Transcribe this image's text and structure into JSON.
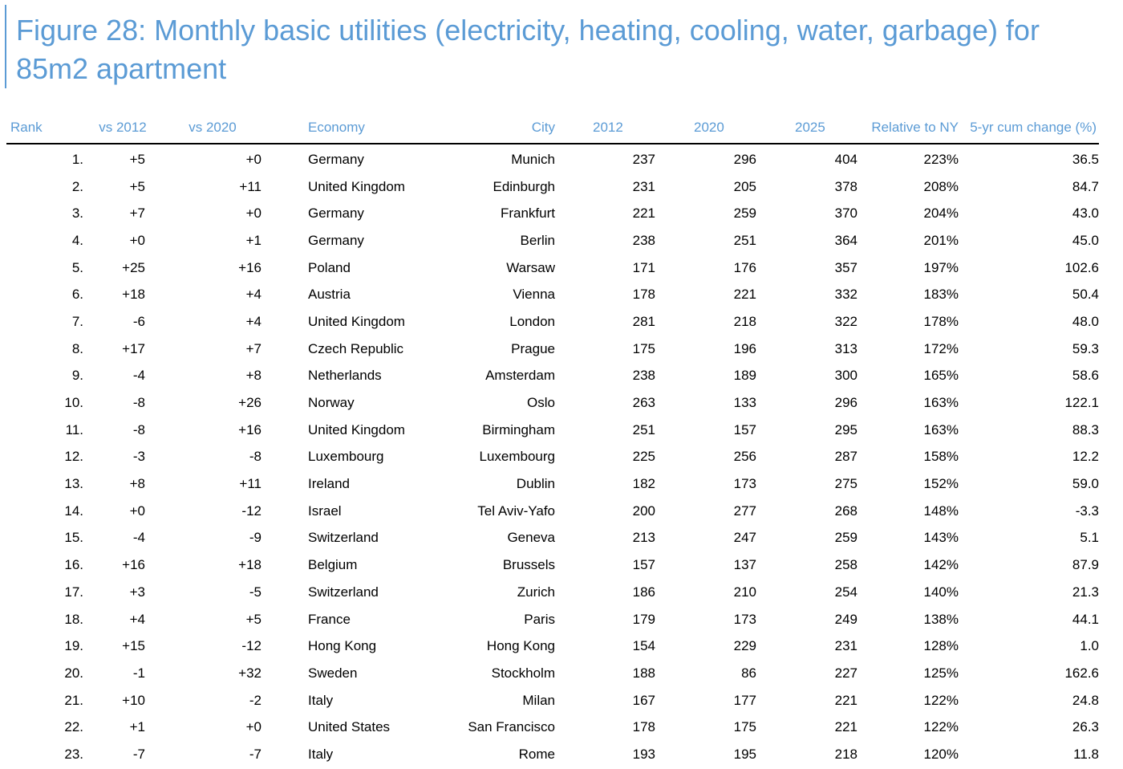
{
  "title": "Figure 28: Monthly basic utilities (electricity, heating, cooling, water, garbage) for 85m2 apartment",
  "colors": {
    "accent": "#5b9bd5",
    "text": "#000000",
    "rule": "#000000"
  },
  "table": {
    "headers": [
      "Rank",
      "vs 2012",
      "vs 2020",
      "Economy",
      "City",
      "2012",
      "2020",
      "2025",
      "Relative to NY",
      "5-yr cum change (%)"
    ],
    "rows": [
      [
        "1.",
        "+5",
        "+0",
        "Germany",
        "Munich",
        "237",
        "296",
        "404",
        "223%",
        "36.5"
      ],
      [
        "2.",
        "+5",
        "+11",
        "United Kingdom",
        "Edinburgh",
        "231",
        "205",
        "378",
        "208%",
        "84.7"
      ],
      [
        "3.",
        "+7",
        "+0",
        "Germany",
        "Frankfurt",
        "221",
        "259",
        "370",
        "204%",
        "43.0"
      ],
      [
        "4.",
        "+0",
        "+1",
        "Germany",
        "Berlin",
        "238",
        "251",
        "364",
        "201%",
        "45.0"
      ],
      [
        "5.",
        "+25",
        "+16",
        "Poland",
        "Warsaw",
        "171",
        "176",
        "357",
        "197%",
        "102.6"
      ],
      [
        "6.",
        "+18",
        "+4",
        "Austria",
        "Vienna",
        "178",
        "221",
        "332",
        "183%",
        "50.4"
      ],
      [
        "7.",
        "-6",
        "+4",
        "United Kingdom",
        "London",
        "281",
        "218",
        "322",
        "178%",
        "48.0"
      ],
      [
        "8.",
        "+17",
        "+7",
        "Czech Republic",
        "Prague",
        "175",
        "196",
        "313",
        "172%",
        "59.3"
      ],
      [
        "9.",
        "-4",
        "+8",
        "Netherlands",
        "Amsterdam",
        "238",
        "189",
        "300",
        "165%",
        "58.6"
      ],
      [
        "10.",
        "-8",
        "+26",
        "Norway",
        "Oslo",
        "263",
        "133",
        "296",
        "163%",
        "122.1"
      ],
      [
        "11.",
        "-8",
        "+16",
        "United Kingdom",
        "Birmingham",
        "251",
        "157",
        "295",
        "163%",
        "88.3"
      ],
      [
        "12.",
        "-3",
        "-8",
        "Luxembourg",
        "Luxembourg",
        "225",
        "256",
        "287",
        "158%",
        "12.2"
      ],
      [
        "13.",
        "+8",
        "+11",
        "Ireland",
        "Dublin",
        "182",
        "173",
        "275",
        "152%",
        "59.0"
      ],
      [
        "14.",
        "+0",
        "-12",
        "Israel",
        "Tel Aviv-Yafo",
        "200",
        "277",
        "268",
        "148%",
        "-3.3"
      ],
      [
        "15.",
        "-4",
        "-9",
        "Switzerland",
        "Geneva",
        "213",
        "247",
        "259",
        "143%",
        "5.1"
      ],
      [
        "16.",
        "+16",
        "+18",
        "Belgium",
        "Brussels",
        "157",
        "137",
        "258",
        "142%",
        "87.9"
      ],
      [
        "17.",
        "+3",
        "-5",
        "Switzerland",
        "Zurich",
        "186",
        "210",
        "254",
        "140%",
        "21.3"
      ],
      [
        "18.",
        "+4",
        "+5",
        "France",
        "Paris",
        "179",
        "173",
        "249",
        "138%",
        "44.1"
      ],
      [
        "19.",
        "+15",
        "-12",
        "Hong Kong",
        "Hong Kong",
        "154",
        "229",
        "231",
        "128%",
        "1.0"
      ],
      [
        "20.",
        "-1",
        "+32",
        "Sweden",
        "Stockholm",
        "188",
        "86",
        "227",
        "125%",
        "162.6"
      ],
      [
        "21.",
        "+10",
        "-2",
        "Italy",
        "Milan",
        "167",
        "177",
        "221",
        "122%",
        "24.8"
      ],
      [
        "22.",
        "+1",
        "+0",
        "United States",
        "San Francisco",
        "178",
        "175",
        "221",
        "122%",
        "26.3"
      ],
      [
        "23.",
        "-7",
        "-7",
        "Italy",
        "Rome",
        "193",
        "195",
        "218",
        "120%",
        "11.8"
      ]
    ]
  }
}
